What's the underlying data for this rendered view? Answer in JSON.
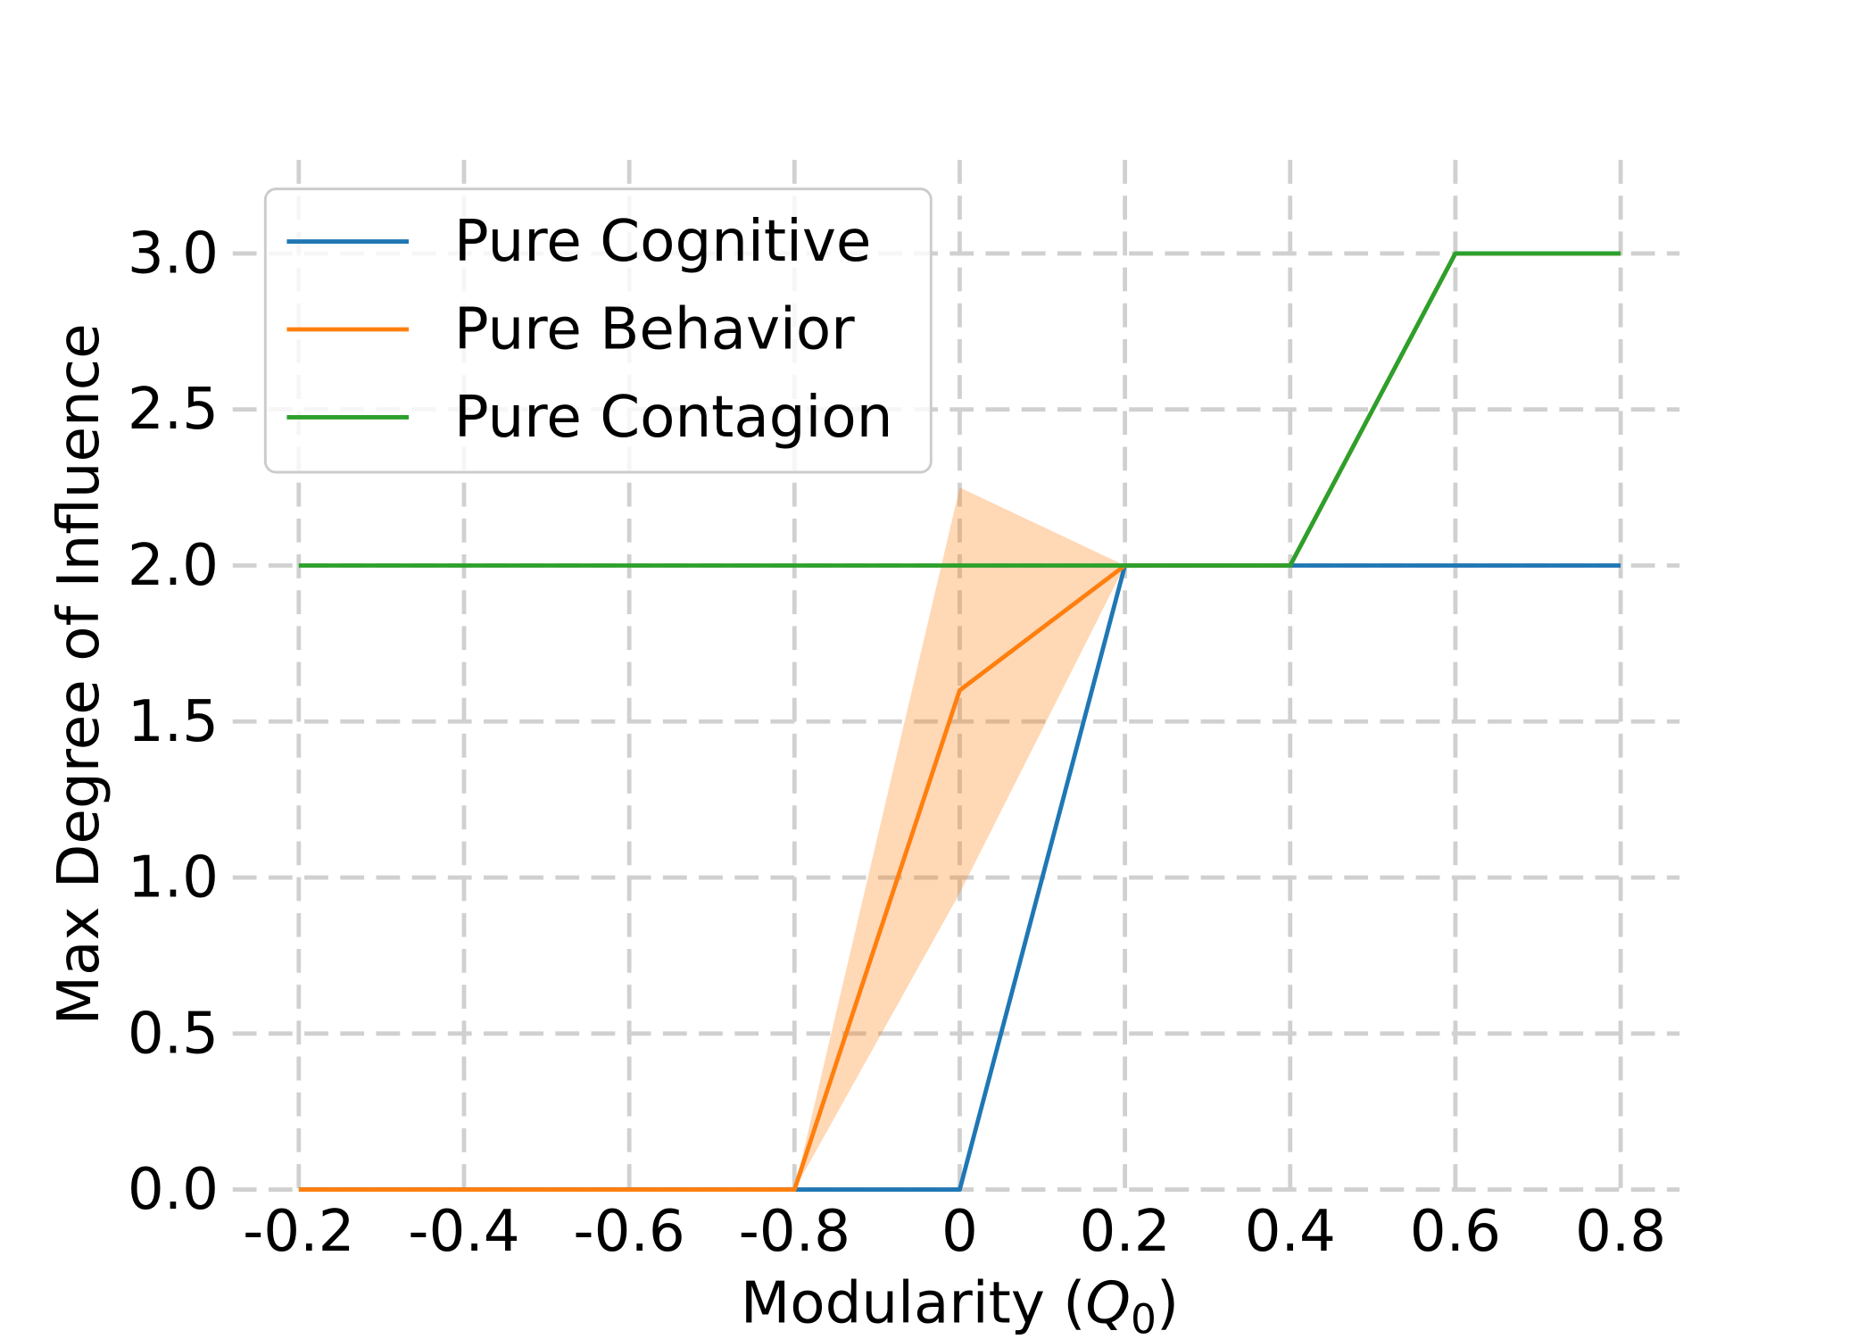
{
  "chart_data": {
    "type": "line",
    "xlabel": {
      "prefix": "Modularity (",
      "symbol": "Q",
      "subscript": "0",
      "suffix": ")"
    },
    "ylabel": "Max Degree of Influence",
    "categories": [
      "-0.2",
      "-0.4",
      "-0.6",
      "-0.8",
      "0",
      "0.2",
      "0.4",
      "0.6",
      "0.8"
    ],
    "ylim": [
      0,
      3.3
    ],
    "yticks": [
      0,
      0.5,
      1.0,
      1.5,
      2.0,
      2.5,
      3.0
    ],
    "ytick_labels": [
      "0.0",
      "0.5",
      "1.0",
      "1.5",
      "2.0",
      "2.5",
      "3.0"
    ],
    "grid": true,
    "grid_style": "dashed",
    "legend_position": "upper left",
    "series": [
      {
        "name": "Pure Cognitive",
        "color": "#1f77b4",
        "values": [
          0,
          0,
          0,
          0,
          0,
          2.0,
          2.0,
          2.0,
          2.0
        ]
      },
      {
        "name": "Pure Behavior",
        "color": "#ff7f0e",
        "values": [
          0,
          0,
          0,
          0,
          1.6,
          2.0,
          2.0,
          3.0,
          3.0
        ],
        "lower": [
          0,
          0,
          0,
          0,
          0.95,
          2.0,
          2.0,
          3.0,
          3.0
        ],
        "upper": [
          0,
          0,
          0,
          0,
          2.25,
          2.0,
          2.0,
          3.0,
          3.0
        ]
      },
      {
        "name": "Pure Contagion",
        "color": "#2ca02c",
        "values": [
          2.0,
          2.0,
          2.0,
          2.0,
          2.0,
          2.0,
          2.0,
          3.0,
          3.0
        ]
      }
    ]
  }
}
